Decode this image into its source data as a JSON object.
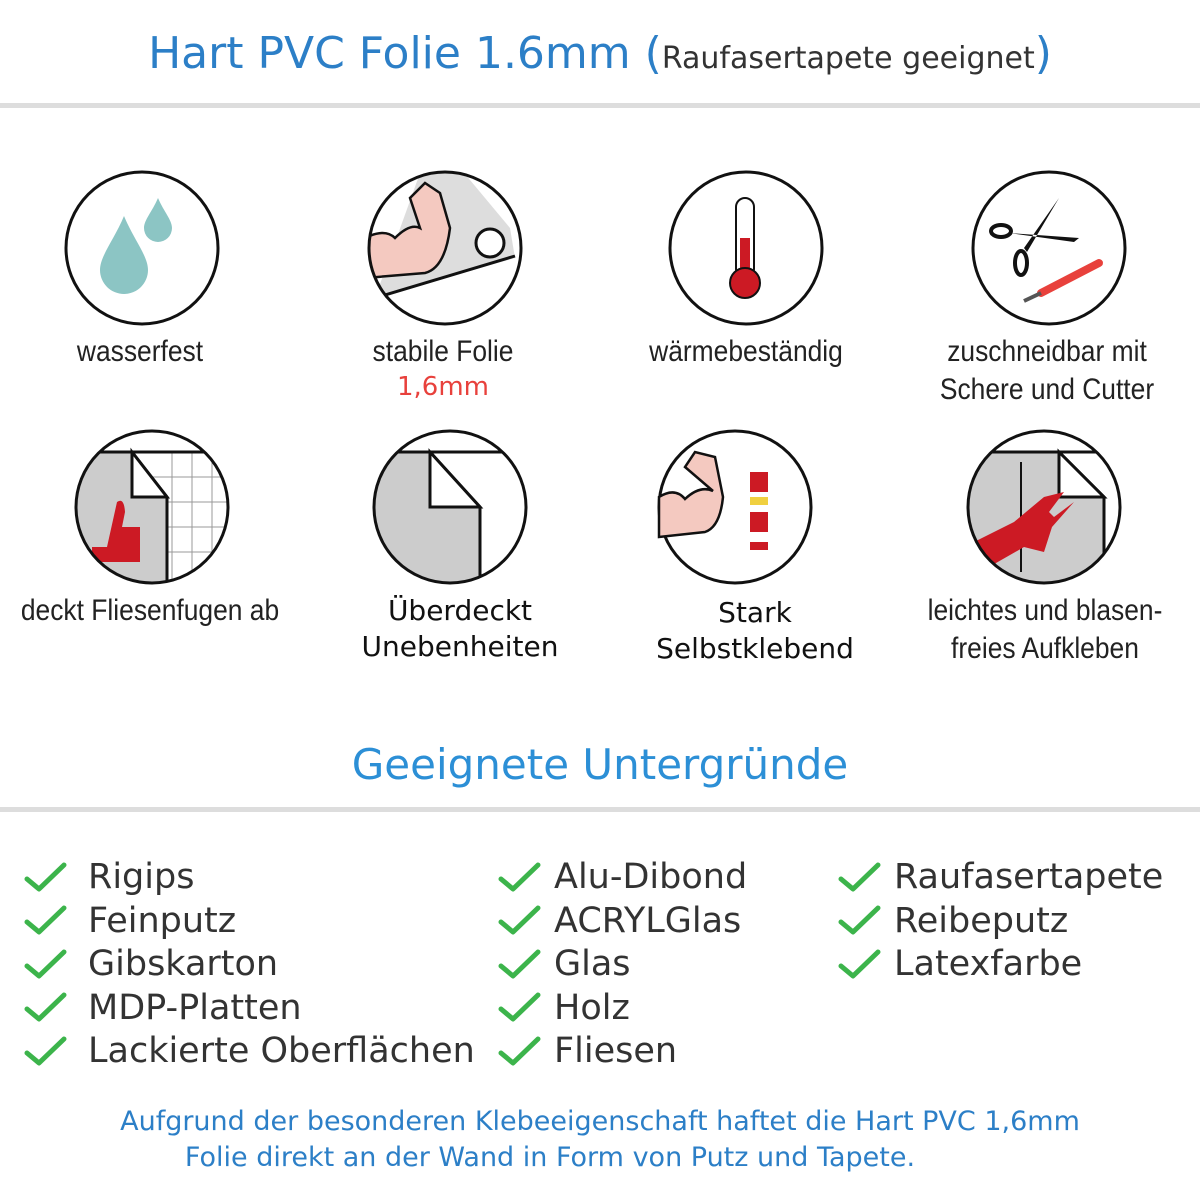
{
  "header": {
    "title": "Hart PVC Folie 1.6mm",
    "paren_open": "(",
    "subtitle": "Raufasertapete geeignet",
    "paren_close": ")"
  },
  "features": [
    {
      "icon": "water-drops-icon",
      "label": "wasserfest"
    },
    {
      "icon": "strong-arm-foil-icon",
      "label": "stabile Folie",
      "sub": "1,6mm"
    },
    {
      "icon": "thermometer-icon",
      "label": "wärmebeständig"
    },
    {
      "icon": "scissors-cutter-icon",
      "label_lines": [
        "zuschneidbar mit",
        "Schere und Cutter"
      ]
    },
    {
      "icon": "thumbs-up-tiles-icon",
      "label": "deckt Fliesenfugen ab"
    },
    {
      "icon": "foil-corner-icon",
      "label_lines": [
        "Überdeckt",
        "Unebenheiten"
      ]
    },
    {
      "icon": "strong-arm-glue-icon",
      "label_lines": [
        "Stark",
        "Selbstklebend"
      ]
    },
    {
      "icon": "hand-smoothing-icon",
      "label_lines": [
        "leichtes und blasen-",
        "freies Aufkleben"
      ]
    }
  ],
  "section": {
    "title": "Geeignete Untergründe"
  },
  "surfaces": {
    "col1": [
      "Rigips",
      "Feinputz",
      "Gibskarton",
      "MDP-Platten",
      "Lackierte Oberflächen"
    ],
    "col2": [
      "Alu-Dibond",
      "ACRYLGlas",
      "Glas",
      "Holz",
      "Fliesen"
    ],
    "col3": [
      "Raufasertapete",
      "Reibeputz",
      "Latexfarbe"
    ]
  },
  "footer": {
    "lines": [
      "Aufgrund der besonderen Klebeeigenschaft haftet die Hart PVC 1,6mm",
      "Folie direkt an der Wand in Form von Putz und Tapete."
    ]
  },
  "colors": {
    "accent": "#2c7fc7",
    "check": "#3cb44b",
    "highlight": "#e8413c",
    "icon_red": "#cc1a24",
    "drop": "#8cc5c4"
  }
}
